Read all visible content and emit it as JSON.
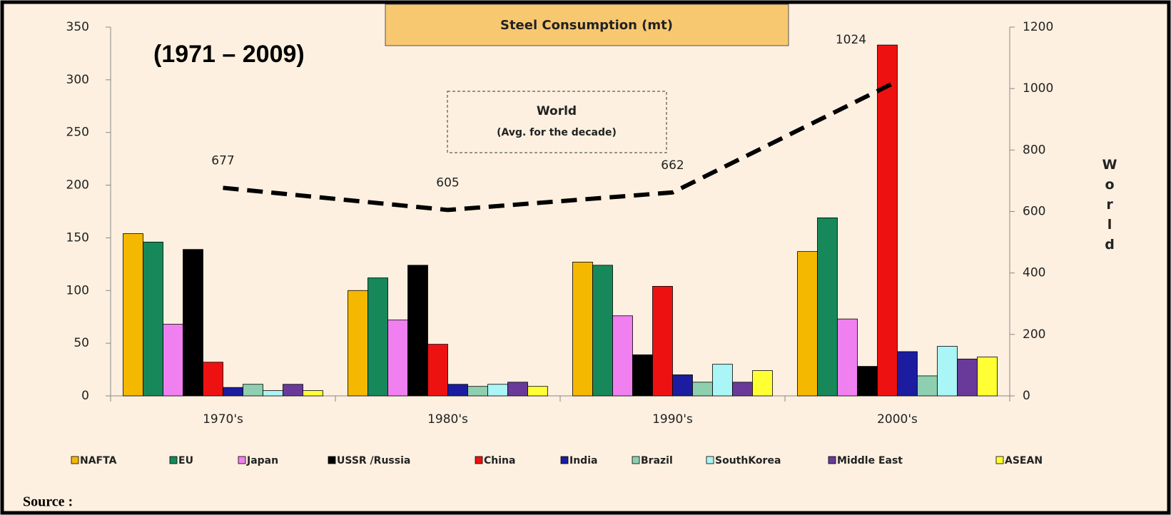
{
  "chart_data": {
    "type": "bar",
    "title": "Steel Consumption (mt)",
    "annotations": [
      "(1971 – 2009)",
      "World",
      "(Avg. for the decade)"
    ],
    "y2label": "World",
    "source": "Source :",
    "categories": [
      "1970's",
      "1980's",
      "1990's",
      "2000's"
    ],
    "series": [
      {
        "name": "NAFTA",
        "color": "#f5b800",
        "values": [
          154,
          100,
          127,
          137
        ]
      },
      {
        "name": "EU",
        "color": "#17885a",
        "values": [
          146,
          112,
          124,
          169
        ]
      },
      {
        "name": "Japan",
        "color": "#f07ff0",
        "values": [
          68,
          72,
          76,
          73
        ]
      },
      {
        "name": "USSR /Russia",
        "color": "#000000",
        "values": [
          139,
          124,
          39,
          28
        ]
      },
      {
        "name": "China",
        "color": "#ee1111",
        "values": [
          32,
          49,
          104,
          333
        ]
      },
      {
        "name": "India",
        "color": "#1c1ca0",
        "values": [
          8,
          11,
          20,
          42
        ]
      },
      {
        "name": "Brazil",
        "color": "#8ecfb0",
        "values": [
          11,
          9,
          13,
          19
        ]
      },
      {
        "name": "SouthKorea",
        "color": "#aaf5f5",
        "values": [
          5,
          11,
          30,
          47
        ]
      },
      {
        "name": "Middle East",
        "color": "#6a3a9a",
        "values": [
          11,
          13,
          13,
          35
        ]
      },
      {
        "name": "ASEAN",
        "color": "#ffff33",
        "values": [
          5,
          9,
          24,
          37
        ]
      }
    ],
    "world": {
      "type": "line",
      "axis": "y2",
      "color": "#000000",
      "values": [
        677,
        605,
        662,
        1024
      ]
    },
    "ylim": [
      0,
      350
    ],
    "yticks": [
      0,
      50,
      100,
      150,
      200,
      250,
      300,
      350
    ],
    "y2lim": [
      0,
      1200
    ],
    "y2ticks": [
      0,
      200,
      400,
      600,
      800,
      1000,
      1200
    ],
    "legend": "bottom"
  }
}
